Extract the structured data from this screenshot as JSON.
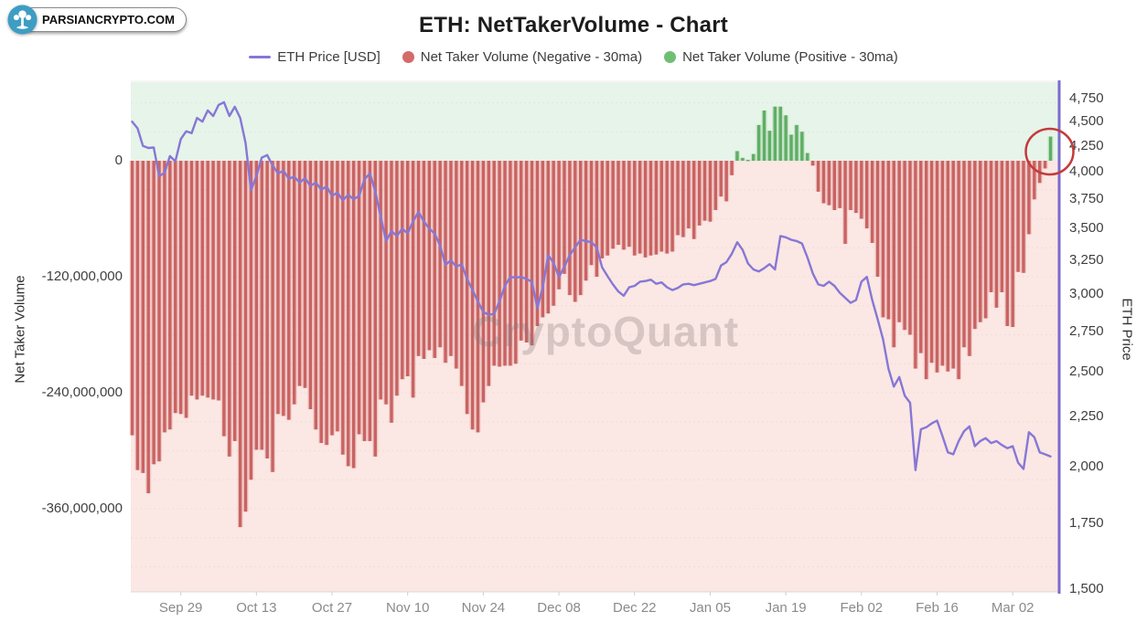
{
  "logo": {
    "text": "PARSIANCRYPTO.COM",
    "icon": "tree-icon",
    "icon_bg": "#3e9dc3"
  },
  "header": {
    "title": "ETH: NetTakerVolume - Chart"
  },
  "legend": [
    {
      "label": "ETH Price [USD]",
      "marker": "line",
      "color": "#8677d6"
    },
    {
      "label": "Net Taker Volume (Negative - 30ma)",
      "marker": "dot",
      "color": "#d56a6a"
    },
    {
      "label": "Net Taker Volume (Positive - 30ma)",
      "marker": "dot",
      "color": "#6fbf73"
    }
  ],
  "watermark": "CryptoQuant",
  "annotation": {
    "shape": "circle",
    "color": "#c23b3b",
    "target": "last-positive-volume-bar"
  },
  "chart_data": {
    "type": "mixed",
    "title": "ETH: NetTakerVolume - Chart",
    "x_axis": {
      "tick_labels": [
        "Sep 29",
        "Oct 13",
        "Oct 27",
        "Nov 10",
        "Nov 24",
        "Dec 08",
        "Dec 22",
        "Jan 05",
        "Jan 19",
        "Feb 02",
        "Feb 16",
        "Mar 02"
      ],
      "tick_day_indices": [
        9,
        23,
        37,
        51,
        65,
        79,
        93,
        107,
        121,
        135,
        149,
        163
      ]
    },
    "left_axis": {
      "label": "Net Taker Volume",
      "tick_labels": [
        "0",
        "-120,000,000",
        "-240,000,000",
        "-360,000,000"
      ],
      "tick_values": [
        0,
        -120000000,
        -240000000,
        -360000000
      ],
      "range_millions": [
        -446,
        81
      ]
    },
    "right_axis": {
      "label": "ETH Price",
      "scale": "log",
      "tick_labels": [
        "4,750",
        "4,500",
        "4,250",
        "4,000",
        "3,750",
        "3,500",
        "3,250",
        "3,000",
        "2,750",
        "2,500",
        "2,250",
        "2,000",
        "1,750",
        "1,500"
      ],
      "tick_values": [
        4750,
        4500,
        4250,
        4000,
        3750,
        3500,
        3250,
        3000,
        2750,
        2500,
        2250,
        2000,
        1750,
        1500
      ],
      "range": [
        1490,
        4940
      ],
      "axis_line_color": "#7c6bce"
    },
    "background_bands": {
      "positive": "#e6f4e9",
      "negative": "#fbe7e3"
    },
    "series": [
      {
        "name": "Net Taker Volume (30ma)",
        "type": "bar",
        "axis": "left",
        "unit": "USD, millions",
        "negative_color": "#c96363",
        "positive_color": "#5fae64",
        "values": [
          -284,
          -320,
          -323,
          -344,
          -314,
          -311,
          -281,
          -278,
          -261,
          -262,
          -266,
          -243,
          -247,
          -243,
          -245,
          -247,
          -248,
          -285,
          -306,
          -290,
          -379,
          -363,
          -330,
          -299,
          -299,
          -308,
          -322,
          -262,
          -264,
          -268,
          -252,
          -233,
          -235,
          -257,
          -278,
          -292,
          -294,
          -284,
          -280,
          -304,
          -316,
          -318,
          -283,
          -290,
          -290,
          -306,
          -247,
          -252,
          -271,
          -243,
          -226,
          -223,
          -245,
          -202,
          -205,
          -196,
          -204,
          -193,
          -209,
          -202,
          -215,
          -233,
          -262,
          -278,
          -281,
          -250,
          -233,
          -212,
          -213,
          -212,
          -212,
          -210,
          -186,
          -188,
          -191,
          -171,
          -162,
          -158,
          -150,
          -133,
          -117,
          -139,
          -146,
          -139,
          -124,
          -108,
          -120,
          -101,
          -98,
          -91,
          -87,
          -92,
          -89,
          -98,
          -96,
          -100,
          -98,
          -97,
          -94,
          -96,
          -94,
          -77,
          -79,
          -70,
          -81,
          -67,
          -62,
          -63,
          -51,
          -37,
          -42,
          -15,
          10,
          3,
          1,
          7,
          37,
          52,
          31,
          56,
          56,
          47,
          27,
          37,
          30,
          8,
          -5,
          -32,
          -44,
          -46,
          -51,
          -49,
          -86,
          -51,
          -54,
          -60,
          -70,
          -85,
          -120,
          -162,
          -164,
          -193,
          -167,
          -175,
          -180,
          -215,
          -199,
          -226,
          -209,
          -219,
          -212,
          -218,
          -215,
          -226,
          -193,
          -202,
          -174,
          -167,
          -163,
          -136,
          -152,
          -136,
          -171,
          -172,
          -115,
          -116,
          -76,
          -40,
          -23,
          -8,
          25
        ]
      },
      {
        "name": "ETH Price [USD]",
        "type": "line",
        "axis": "right",
        "unit": "USD",
        "color": "#8677d6",
        "values": [
          4500,
          4430,
          4250,
          4230,
          4235,
          3960,
          3990,
          4150,
          4100,
          4320,
          4400,
          4380,
          4540,
          4500,
          4620,
          4560,
          4680,
          4710,
          4560,
          4660,
          4540,
          4280,
          3830,
          3960,
          4135,
          4160,
          4060,
          3985,
          4010,
          3935,
          3955,
          3900,
          3940,
          3870,
          3900,
          3835,
          3865,
          3780,
          3810,
          3740,
          3790,
          3750,
          3780,
          3930,
          3985,
          3820,
          3600,
          3400,
          3480,
          3440,
          3500,
          3460,
          3560,
          3640,
          3560,
          3500,
          3460,
          3365,
          3215,
          3250,
          3200,
          3220,
          3110,
          3030,
          2950,
          2877,
          2860,
          2865,
          2950,
          3060,
          3125,
          3120,
          3125,
          3110,
          3090,
          2905,
          3050,
          3290,
          3230,
          3125,
          3200,
          3290,
          3350,
          3410,
          3400,
          3390,
          3350,
          3195,
          3130,
          3070,
          3020,
          2990,
          3050,
          3060,
          3090,
          3095,
          3105,
          3075,
          3085,
          3050,
          3030,
          3045,
          3070,
          3075,
          3065,
          3075,
          3085,
          3095,
          3110,
          3210,
          3235,
          3300,
          3390,
          3330,
          3225,
          3180,
          3165,
          3190,
          3220,
          3180,
          3440,
          3430,
          3410,
          3400,
          3380,
          3270,
          3150,
          3070,
          3060,
          3090,
          3060,
          3010,
          2975,
          2940,
          2960,
          3090,
          3125,
          2960,
          2830,
          2700,
          2520,
          2415,
          2470,
          2365,
          2325,
          1985,
          2185,
          2195,
          2215,
          2230,
          2150,
          2070,
          2060,
          2125,
          2175,
          2200,
          2100,
          2125,
          2140,
          2115,
          2125,
          2105,
          2090,
          2100,
          2020,
          1990,
          2170,
          2145,
          2070,
          2060,
          2050
        ]
      }
    ]
  }
}
